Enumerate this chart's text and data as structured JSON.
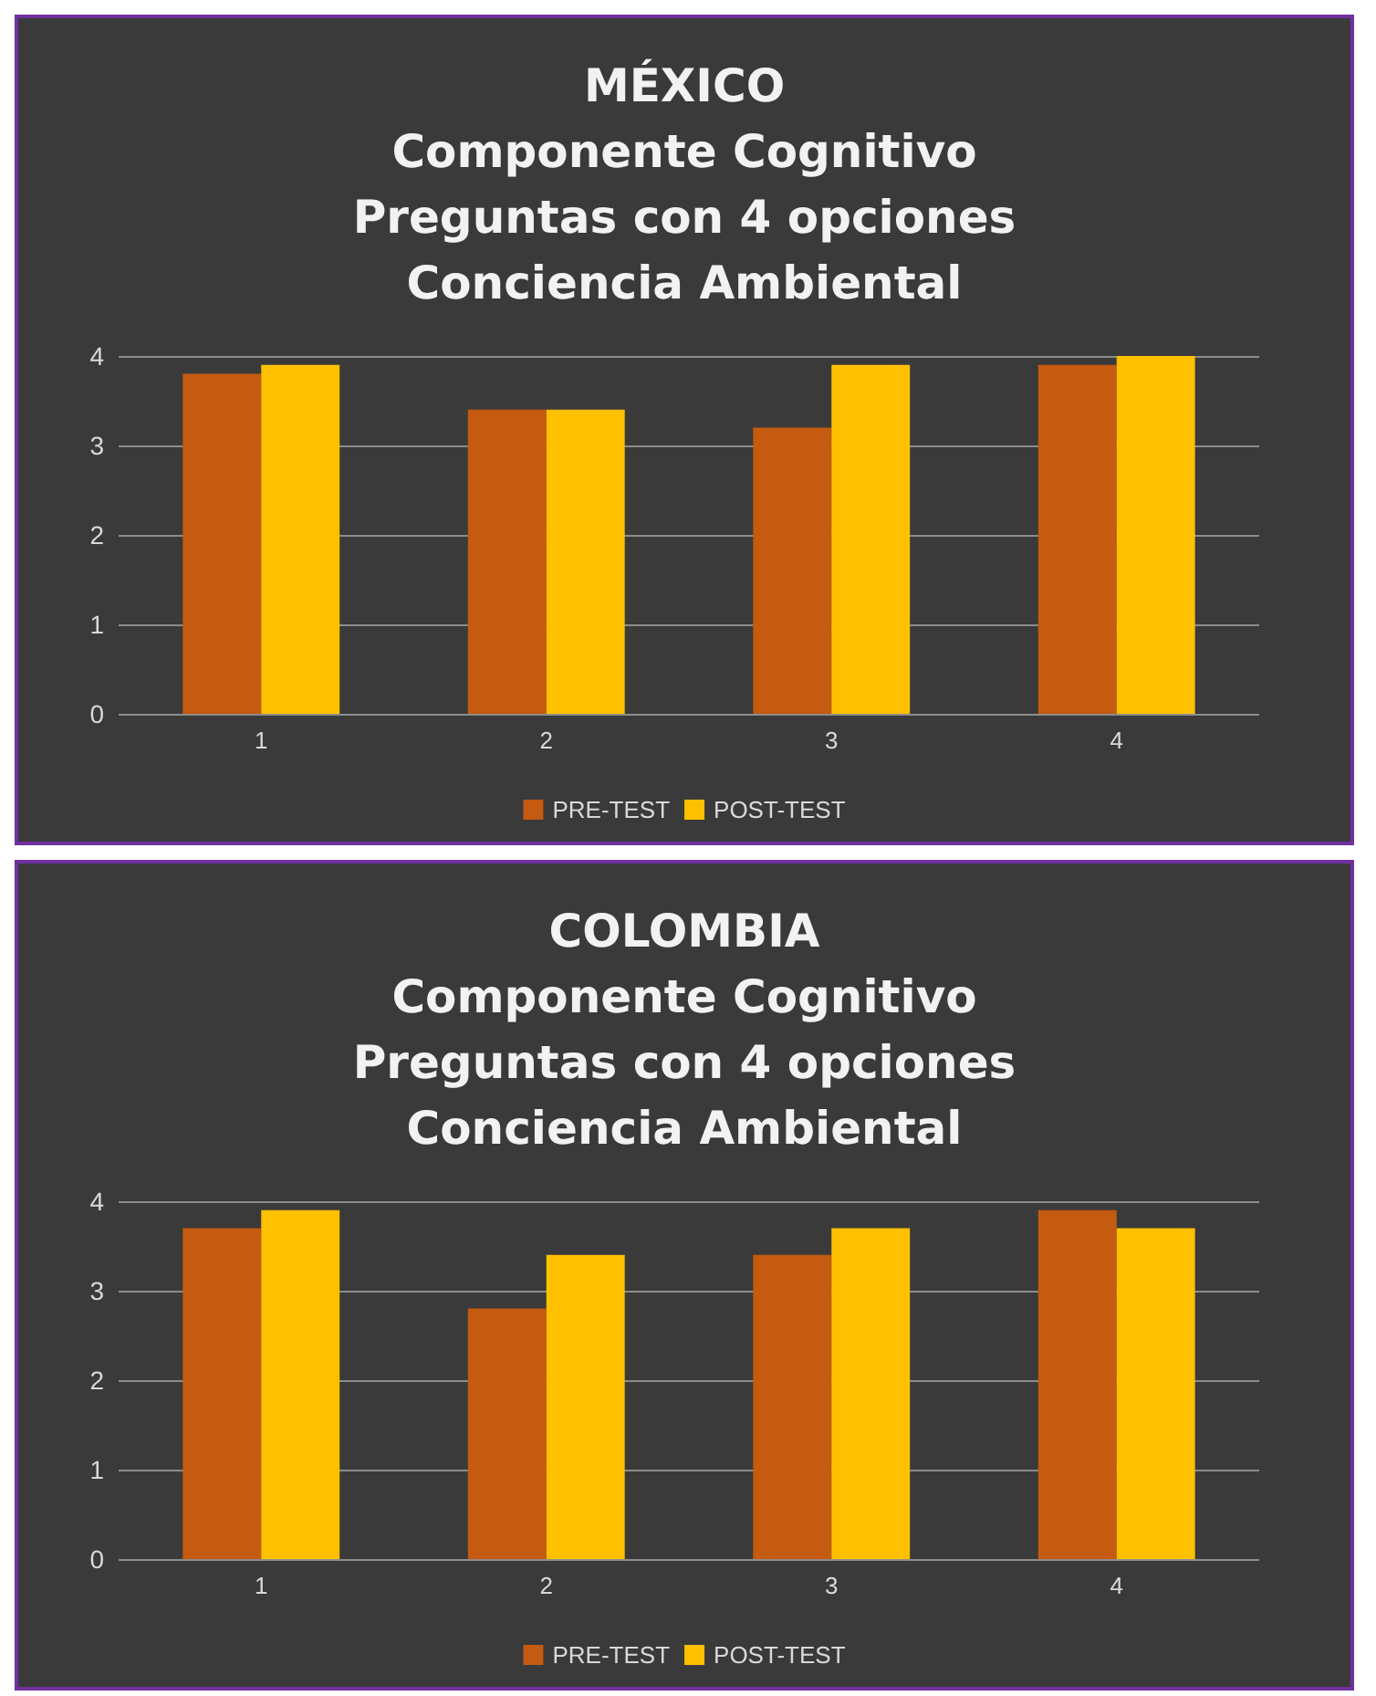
{
  "chart_data": [
    {
      "type": "bar",
      "title": "MÉXICO\nComponente Cognitivo\nPreguntas con 4 opciones\nConciencia Ambiental",
      "categories": [
        "1",
        "2",
        "3",
        "4"
      ],
      "series": [
        {
          "name": "PRE-TEST",
          "color": "#c55a11",
          "values": [
            3.8,
            3.4,
            3.2,
            3.9
          ]
        },
        {
          "name": "POST-TEST",
          "color": "#ffc000",
          "values": [
            3.9,
            3.4,
            3.9,
            4.0
          ]
        }
      ],
      "ylim": [
        0,
        4
      ],
      "yticks": [
        0,
        1,
        2,
        3,
        4
      ],
      "grid": "y",
      "legend": "bottom"
    },
    {
      "type": "bar",
      "title": "COLOMBIA\nComponente Cognitivo\nPreguntas con 4 opciones\nConciencia Ambiental",
      "categories": [
        "1",
        "2",
        "3",
        "4"
      ],
      "series": [
        {
          "name": "PRE-TEST",
          "color": "#c55a11",
          "values": [
            3.7,
            2.8,
            3.4,
            3.9
          ]
        },
        {
          "name": "POST-TEST",
          "color": "#ffc000",
          "values": [
            3.9,
            3.4,
            3.7,
            3.7
          ]
        }
      ],
      "ylim": [
        0,
        4
      ],
      "yticks": [
        0,
        1,
        2,
        3,
        4
      ],
      "grid": "y",
      "legend": "bottom"
    }
  ]
}
